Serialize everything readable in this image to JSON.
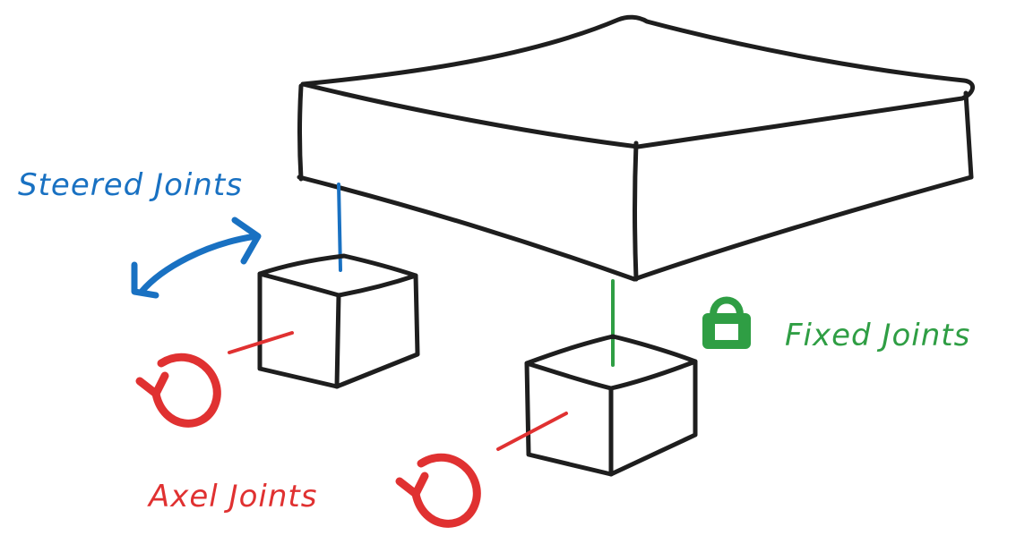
{
  "labels": {
    "steered": "Steered Joints",
    "fixed": "Fixed Joints",
    "axel": "Axel Joints"
  },
  "colors": {
    "outline": "#1e1e1e",
    "steered": "#1971c2",
    "fixed": "#2f9e44",
    "axel": "#e03131"
  },
  "icons": {
    "steer": "double-headed-curved-arrow-icon",
    "lock": "padlock-icon",
    "rotate": "circular-rotation-arrow-icon"
  }
}
